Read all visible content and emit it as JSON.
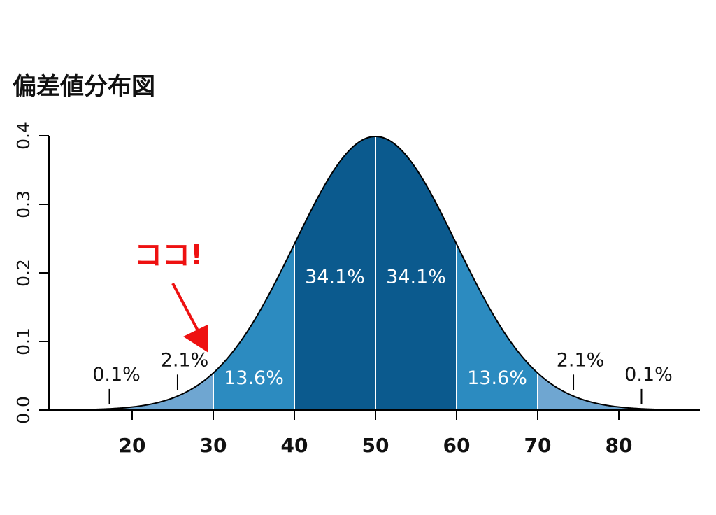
{
  "chart_data": {
    "type": "area",
    "title": "偏差値分布図",
    "distribution": {
      "kind": "normal",
      "mean": 50,
      "sd": 10
    },
    "xlim": [
      9.6,
      90
    ],
    "ylim": [
      0,
      0.4
    ],
    "x_ticks": [
      20,
      30,
      40,
      50,
      60,
      70,
      80
    ],
    "x_tick_labels": [
      "20",
      "30",
      "40",
      "50",
      "60",
      "70",
      "80"
    ],
    "y_ticks": [
      0.0,
      0.1,
      0.2,
      0.3,
      0.4
    ],
    "y_tick_labels": [
      "0.0",
      "0.1",
      "0.2",
      "0.3",
      "0.4"
    ],
    "grid": false,
    "segments": [
      {
        "from": 9.6,
        "to": 30,
        "color": "#6fa6d1"
      },
      {
        "from": 30,
        "to": 40,
        "color": "#2c8bc0"
      },
      {
        "from": 40,
        "to": 50,
        "color": "#0b5a8e"
      },
      {
        "from": 50,
        "to": 60,
        "color": "#0b5a8e"
      },
      {
        "from": 60,
        "to": 70,
        "color": "#2c8bc0"
      },
      {
        "from": 70,
        "to": 90,
        "color": "#6fa6d1"
      }
    ],
    "inner_labels": [
      {
        "text": "13.6%",
        "x": 35,
        "y": 0.038
      },
      {
        "text": "34.1%",
        "x": 45,
        "y": 0.185
      },
      {
        "text": "34.1%",
        "x": 55,
        "y": 0.185
      },
      {
        "text": "13.6%",
        "x": 65,
        "y": 0.038
      }
    ],
    "outer_labels": [
      {
        "text": "0.1%",
        "x": 17.2,
        "y": 0.045
      },
      {
        "text": "2.1%",
        "x": 25.6,
        "y": 0.066
      },
      {
        "text": "2.1%",
        "x": 74.4,
        "y": 0.066
      },
      {
        "text": "0.1%",
        "x": 82.8,
        "y": 0.045
      }
    ],
    "annotation": {
      "text": "ココ!",
      "points_to_x": 30,
      "color": "#ee1111"
    }
  }
}
